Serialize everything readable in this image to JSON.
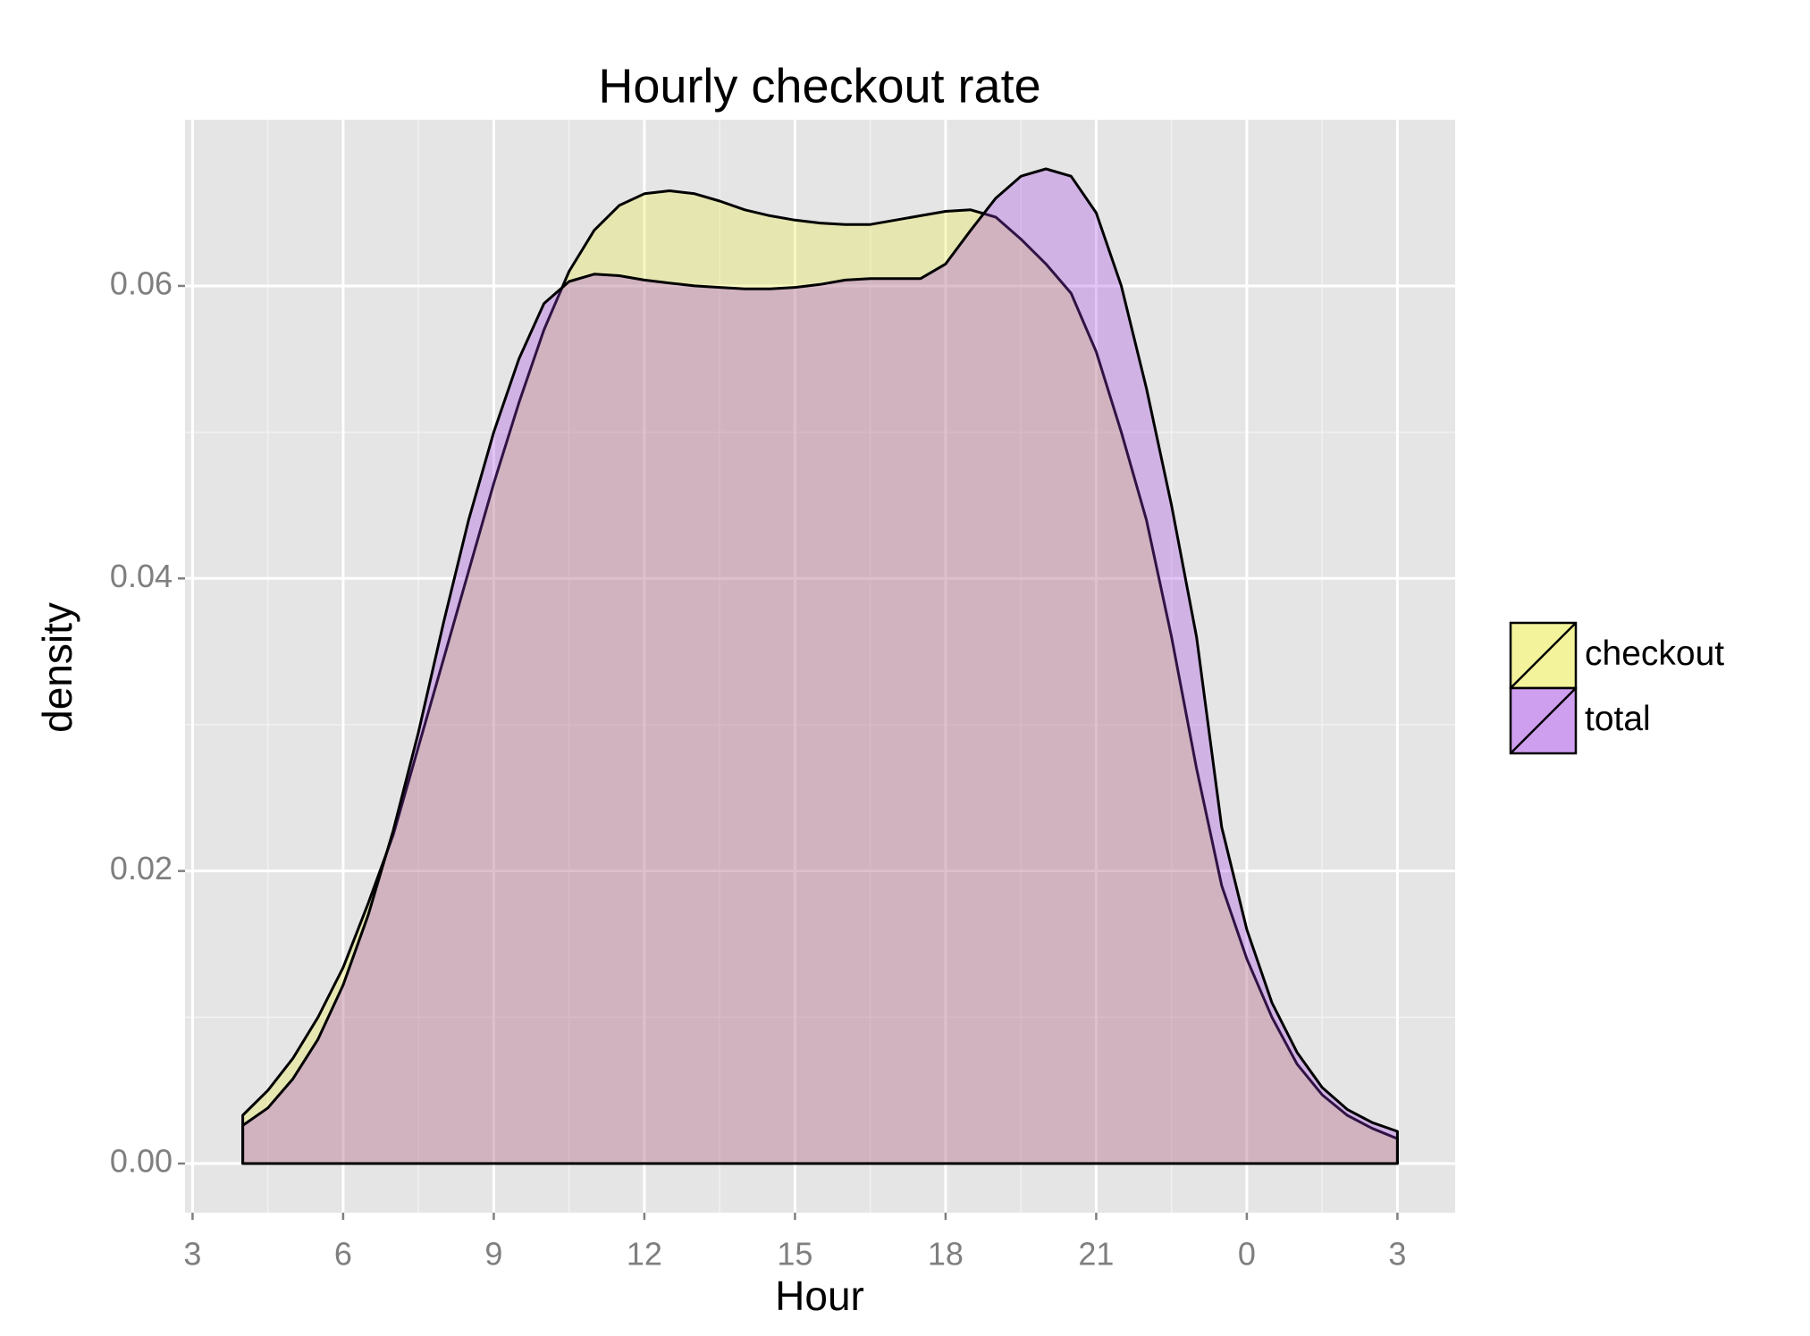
{
  "chart_data": {
    "type": "density",
    "title": "Hourly checkout rate",
    "x_label": "Hour",
    "y_label": "density",
    "x": [
      4,
      4.5,
      5,
      5.5,
      6,
      6.5,
      7,
      7.5,
      8,
      8.5,
      9,
      9.5,
      10,
      10.5,
      11,
      11.5,
      12,
      12.5,
      13,
      13.5,
      14,
      14.5,
      15,
      15.5,
      16,
      16.5,
      17,
      17.5,
      18,
      18.5,
      19,
      19.5,
      20,
      20.5,
      21,
      21.5,
      22,
      22.5,
      23,
      23.5,
      24,
      24.5,
      25,
      25.5,
      26,
      26.5,
      27
    ],
    "series": [
      {
        "name": "checkout",
        "color": "#e8e838",
        "values": [
          0.0033,
          0.005,
          0.0072,
          0.01,
          0.0134,
          0.0178,
          0.0225,
          0.0285,
          0.0345,
          0.0405,
          0.0465,
          0.052,
          0.057,
          0.061,
          0.0638,
          0.0655,
          0.0663,
          0.0665,
          0.0663,
          0.0658,
          0.0652,
          0.0648,
          0.0645,
          0.0643,
          0.0642,
          0.0642,
          0.0645,
          0.0648,
          0.0651,
          0.0652,
          0.0647,
          0.0632,
          0.0615,
          0.0595,
          0.0555,
          0.05,
          0.044,
          0.036,
          0.027,
          0.019,
          0.014,
          0.01,
          0.0068,
          0.0047,
          0.0033,
          0.0024,
          0.0017
        ]
      },
      {
        "name": "total",
        "color": "#a040e0",
        "values": [
          0.0026,
          0.0038,
          0.0058,
          0.0085,
          0.0122,
          0.017,
          0.0228,
          0.0295,
          0.037,
          0.044,
          0.05,
          0.055,
          0.0588,
          0.0603,
          0.0608,
          0.0607,
          0.0604,
          0.0602,
          0.06,
          0.0599,
          0.0598,
          0.0598,
          0.0599,
          0.0601,
          0.0604,
          0.0605,
          0.0605,
          0.0605,
          0.0615,
          0.0638,
          0.066,
          0.0675,
          0.068,
          0.0675,
          0.065,
          0.06,
          0.053,
          0.045,
          0.036,
          0.023,
          0.016,
          0.011,
          0.0076,
          0.0052,
          0.0037,
          0.0028,
          0.0022
        ]
      }
    ],
    "xlim": [
      2.85,
      28.15
    ],
    "ylim": [
      -0.00336,
      0.07136
    ],
    "xticks": [
      3,
      6,
      9,
      12,
      15,
      18,
      21,
      {
        "value": 24,
        "label": "0"
      },
      {
        "value": 27,
        "label": "3"
      }
    ],
    "yticks": [
      {
        "value": 0,
        "label": "0.00"
      },
      {
        "value": 0.02,
        "label": "0.02"
      },
      {
        "value": 0.04,
        "label": "0.04"
      },
      {
        "value": 0.06,
        "label": "0.06"
      }
    ],
    "grid": true,
    "legend": "right"
  }
}
